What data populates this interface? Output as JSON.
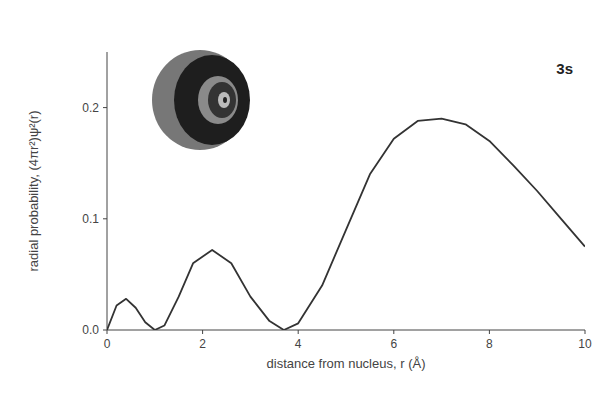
{
  "chart_data": {
    "type": "line",
    "title": "3s",
    "x_label": "distance from nucleus, r (Å)",
    "y_label": "radial probability, (4πr²)ψ²(r)",
    "x": [
      0,
      0.2,
      0.4,
      0.6,
      0.8,
      1.0,
      1.2,
      1.5,
      1.8,
      2.2,
      2.6,
      3.0,
      3.4,
      3.7,
      4.0,
      4.5,
      5.0,
      5.5,
      6.0,
      6.5,
      7.0,
      7.5,
      8.0,
      8.5,
      9.0,
      9.5,
      10
    ],
    "values": [
      0,
      0.022,
      0.028,
      0.02,
      0.007,
      0,
      0.004,
      0.03,
      0.06,
      0.072,
      0.06,
      0.03,
      0.008,
      0,
      0.006,
      0.04,
      0.09,
      0.14,
      0.172,
      0.188,
      0.19,
      0.185,
      0.17,
      0.148,
      0.125,
      0.1,
      0.075
    ],
    "color": "#333333",
    "xlim": [
      0,
      10
    ],
    "xticks": [
      0,
      2,
      4,
      6,
      8,
      10
    ],
    "ylim": [
      0,
      0.25
    ],
    "yticks": [
      {
        "value": 0,
        "label": "0.0"
      },
      {
        "value": 0.1,
        "label": "0.1"
      },
      {
        "value": 0.2,
        "label": "0.2"
      }
    ],
    "grid": false
  }
}
